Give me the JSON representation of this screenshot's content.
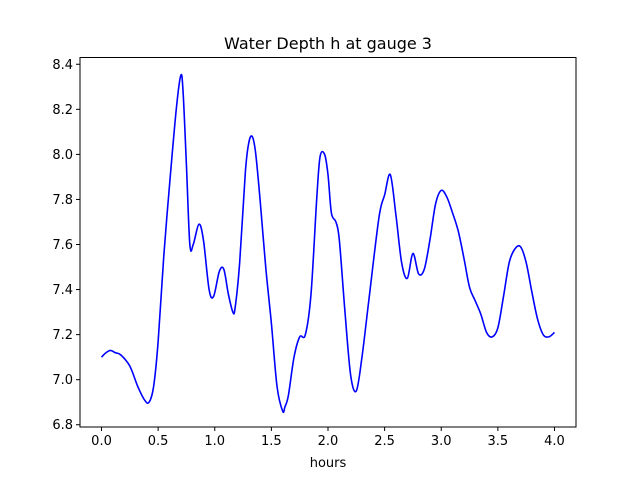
{
  "chart_data": {
    "type": "line",
    "title": "Water Depth h at gauge 3",
    "xlabel": "hours",
    "ylabel": "",
    "xlim": [
      -0.19,
      4.19
    ],
    "ylim": [
      6.79,
      8.43
    ],
    "xticks": [
      0.0,
      0.5,
      1.0,
      1.5,
      2.0,
      2.5,
      3.0,
      3.5,
      4.0
    ],
    "xtick_labels": [
      "0.0",
      "0.5",
      "1.0",
      "1.5",
      "2.0",
      "2.5",
      "3.0",
      "3.5",
      "4.0"
    ],
    "yticks": [
      6.8,
      7.0,
      7.2,
      7.4,
      7.6,
      7.8,
      8.0,
      8.2,
      8.4
    ],
    "ytick_labels": [
      "6.8",
      "7.0",
      "7.2",
      "7.4",
      "7.6",
      "7.8",
      "8.0",
      "8.2",
      "8.4"
    ],
    "grid": false,
    "legend": "none",
    "series": [
      {
        "color": "#0000ff",
        "x": [
          0.0,
          0.04,
          0.08,
          0.12,
          0.17,
          0.25,
          0.32,
          0.38,
          0.42,
          0.46,
          0.5,
          0.55,
          0.6,
          0.66,
          0.7,
          0.72,
          0.75,
          0.78,
          0.81,
          0.86,
          0.9,
          0.95,
          0.99,
          1.04,
          1.08,
          1.12,
          1.16,
          1.18,
          1.22,
          1.27,
          1.3,
          1.33,
          1.36,
          1.4,
          1.45,
          1.5,
          1.55,
          1.6,
          1.62,
          1.65,
          1.7,
          1.75,
          1.8,
          1.85,
          1.9,
          1.93,
          1.97,
          2.0,
          2.03,
          2.07,
          2.1,
          2.15,
          2.2,
          2.25,
          2.3,
          2.36,
          2.45,
          2.5,
          2.55,
          2.6,
          2.65,
          2.7,
          2.75,
          2.8,
          2.85,
          2.9,
          2.95,
          3.0,
          3.05,
          3.1,
          3.15,
          3.2,
          3.25,
          3.3,
          3.35,
          3.4,
          3.45,
          3.5,
          3.55,
          3.6,
          3.65,
          3.7,
          3.75,
          3.8,
          3.85,
          3.9,
          3.95,
          4.0
        ],
        "y": [
          7.1,
          7.12,
          7.13,
          7.12,
          7.11,
          7.06,
          6.97,
          6.91,
          6.9,
          6.97,
          7.17,
          7.55,
          7.86,
          8.2,
          8.35,
          8.28,
          7.95,
          7.6,
          7.6,
          7.69,
          7.62,
          7.4,
          7.37,
          7.48,
          7.49,
          7.38,
          7.3,
          7.32,
          7.52,
          7.92,
          8.05,
          8.08,
          8.01,
          7.8,
          7.5,
          7.25,
          6.97,
          6.86,
          6.88,
          6.93,
          7.1,
          7.19,
          7.2,
          7.38,
          7.8,
          7.99,
          8.0,
          7.91,
          7.74,
          7.7,
          7.62,
          7.3,
          7.02,
          6.95,
          7.1,
          7.35,
          7.72,
          7.82,
          7.91,
          7.73,
          7.52,
          7.45,
          7.56,
          7.47,
          7.49,
          7.62,
          7.78,
          7.84,
          7.81,
          7.74,
          7.66,
          7.54,
          7.41,
          7.35,
          7.29,
          7.21,
          7.19,
          7.23,
          7.37,
          7.52,
          7.58,
          7.59,
          7.52,
          7.39,
          7.27,
          7.2,
          7.19,
          7.21
        ]
      }
    ]
  }
}
